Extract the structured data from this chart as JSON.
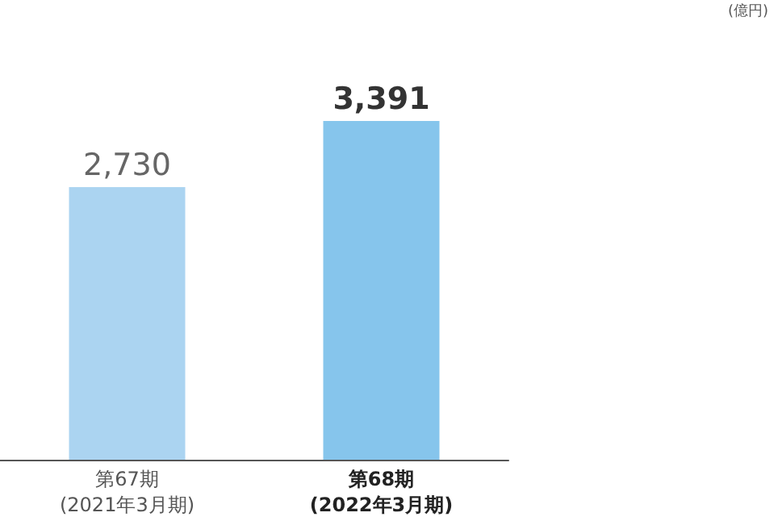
{
  "chart_data": {
    "type": "bar",
    "annotations": [
      "(億円)"
    ],
    "categories": [
      "第67期\n(2021年3月期)",
      "第68期\n(2022年3月期)"
    ],
    "values": [
      2730,
      3391
    ],
    "colors": [
      "#abd4f1",
      "#86c5ec"
    ],
    "value_labels": [
      "2,730",
      "3,391"
    ]
  }
}
